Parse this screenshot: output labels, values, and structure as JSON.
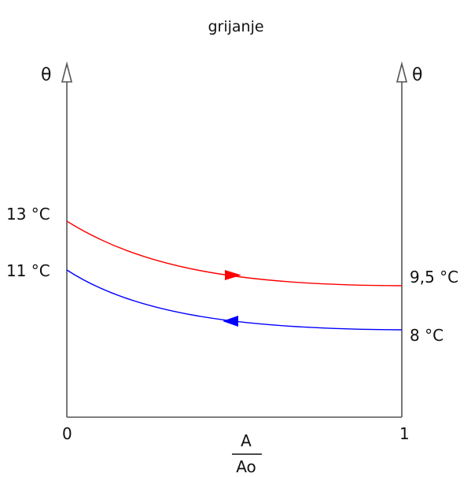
{
  "title": "grijanje",
  "left_axis_label": "θ",
  "right_axis_label": "θ",
  "left_values": {
    "top": "13 °C",
    "bottom": "11 °C"
  },
  "right_values": {
    "top": "9,5 °C",
    "bottom": "8 °C"
  },
  "x_axis": {
    "start": "0",
    "end": "1",
    "numerator": "A",
    "denominator": "Ao"
  },
  "curves": [
    {
      "name": "",
      "color": "#ff0000",
      "from_value": 13,
      "to_value": 9.5,
      "direction": "right"
    },
    {
      "name": "",
      "color": "#0000ff",
      "from_value": 11,
      "to_value": 8,
      "direction": "left"
    }
  ],
  "colors": {
    "axis": "#555555",
    "hot": "#ff0000",
    "cold": "#0000ff"
  }
}
